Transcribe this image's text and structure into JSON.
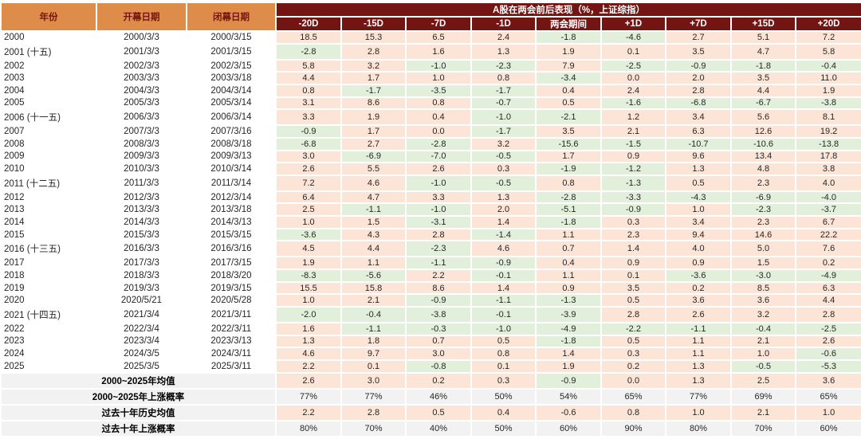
{
  "chart_data": {
    "type": "table",
    "title": "A股在两会前后表现（%，上证综指）",
    "columns": {
      "year": "年份",
      "open": "开幕日期",
      "close": "闭幕日期"
    },
    "period_columns": [
      "-20D",
      "-15D",
      "-7D",
      "-1D",
      "两会期间",
      "+1D",
      "+7D",
      "+15D",
      "+20D"
    ],
    "rows": [
      {
        "year": "2000",
        "open": "2000/3/3",
        "close": "2000/3/15",
        "values": [
          "18.5",
          "15.3",
          "6.5",
          "2.4",
          "-1.8",
          "-4.6",
          "2.7",
          "5.1",
          "7.2"
        ]
      },
      {
        "year": "2001 (十五)",
        "open": "2001/3/3",
        "close": "2001/3/15",
        "values": [
          "-2.8",
          "2.8",
          "1.6",
          "1.3",
          "1.9",
          "0.1",
          "3.5",
          "4.7",
          "5.8"
        ]
      },
      {
        "year": "2002",
        "open": "2002/3/3",
        "close": "2002/3/15",
        "values": [
          "5.8",
          "3.2",
          "-1.0",
          "-2.3",
          "7.9",
          "-2.5",
          "-0.9",
          "-1.8",
          "-0.4"
        ]
      },
      {
        "year": "2003",
        "open": "2003/3/3",
        "close": "2003/3/18",
        "values": [
          "4.4",
          "1.7",
          "1.0",
          "0.8",
          "-3.4",
          "0.0",
          "2.0",
          "3.5",
          "11.0"
        ]
      },
      {
        "year": "2004",
        "open": "2004/3/3",
        "close": "2004/3/14",
        "values": [
          "0.8",
          "-1.7",
          "-3.5",
          "-1.7",
          "0.4",
          "2.4",
          "2.8",
          "4.4",
          "1.9"
        ]
      },
      {
        "year": "2005",
        "open": "2005/3/3",
        "close": "2005/3/14",
        "values": [
          "3.1",
          "8.6",
          "0.8",
          "-0.7",
          "0.5",
          "-1.6",
          "-6.8",
          "-6.7",
          "-3.8"
        ]
      },
      {
        "year": "2006 (十一五)",
        "open": "2006/3/3",
        "close": "2006/3/14",
        "values": [
          "3.3",
          "1.9",
          "0.4",
          "-1.0",
          "-2.1",
          "1.2",
          "3.4",
          "5.6",
          "8.1"
        ]
      },
      {
        "year": "2007",
        "open": "2007/3/3",
        "close": "2007/3/16",
        "values": [
          "-0.9",
          "1.7",
          "0.0",
          "-1.7",
          "3.5",
          "2.1",
          "6.3",
          "12.6",
          "19.2"
        ]
      },
      {
        "year": "2008",
        "open": "2008/3/3",
        "close": "2008/3/18",
        "values": [
          "-6.8",
          "2.7",
          "-2.8",
          "3.2",
          "-15.6",
          "-1.5",
          "-10.7",
          "-10.6",
          "-13.8"
        ]
      },
      {
        "year": "2009",
        "open": "2009/3/3",
        "close": "2009/3/13",
        "values": [
          "3.0",
          "-6.9",
          "-7.0",
          "-0.5",
          "1.7",
          "0.9",
          "9.6",
          "13.4",
          "17.8"
        ]
      },
      {
        "year": "2010",
        "open": "2010/3/3",
        "close": "2010/3/14",
        "values": [
          "2.6",
          "5.5",
          "2.6",
          "0.3",
          "-1.9",
          "-1.2",
          "1.3",
          "4.8",
          "3.8"
        ]
      },
      {
        "year": "2011 (十二五)",
        "open": "2011/3/3",
        "close": "2011/3/14",
        "values": [
          "7.2",
          "4.6",
          "-1.0",
          "-0.5",
          "0.8",
          "-1.3",
          "0.5",
          "2.3",
          "4.0"
        ]
      },
      {
        "year": "2012",
        "open": "2012/3/3",
        "close": "2012/3/14",
        "values": [
          "6.4",
          "4.7",
          "3.3",
          "1.3",
          "-2.8",
          "-3.3",
          "-4.3",
          "-6.9",
          "-4.0"
        ]
      },
      {
        "year": "2013",
        "open": "2013/3/3",
        "close": "2013/3/18",
        "values": [
          "2.5",
          "-1.1",
          "-1.0",
          "2.0",
          "-5.1",
          "-0.9",
          "1.0",
          "-2.3",
          "-3.7"
        ]
      },
      {
        "year": "2014",
        "open": "2014/3/3",
        "close": "2014/3/13",
        "values": [
          "1.0",
          "1.5",
          "-3.1",
          "1.4",
          "-1.8",
          "0.3",
          "3.4",
          "2.3",
          "6.7"
        ]
      },
      {
        "year": "2015",
        "open": "2015/3/3",
        "close": "2015/3/15",
        "values": [
          "-3.6",
          "4.3",
          "2.8",
          "-1.4",
          "1.1",
          "2.3",
          "9.4",
          "14.6",
          "22.2"
        ]
      },
      {
        "year": "2016 (十三五)",
        "open": "2016/3/3",
        "close": "2016/3/16",
        "values": [
          "4.5",
          "4.4",
          "-2.3",
          "4.6",
          "0.7",
          "1.4",
          "4.0",
          "5.0",
          "7.6"
        ]
      },
      {
        "year": "2017",
        "open": "2017/3/3",
        "close": "2017/3/15",
        "values": [
          "1.9",
          "1.1",
          "-1.1",
          "-0.9",
          "0.4",
          "0.9",
          "0.9",
          "1.5",
          "0.2"
        ]
      },
      {
        "year": "2018",
        "open": "2018/3/3",
        "close": "2018/3/20",
        "values": [
          "-8.3",
          "-5.6",
          "2.2",
          "-0.1",
          "1.1",
          "0.1",
          "-3.6",
          "-3.0",
          "-4.9"
        ]
      },
      {
        "year": "2019",
        "open": "2019/3/3",
        "close": "2019/3/15",
        "values": [
          "15.5",
          "15.8",
          "8.6",
          "1.4",
          "0.9",
          "3.5",
          "0.2",
          "8.5",
          "6.3"
        ]
      },
      {
        "year": "2020",
        "open": "2020/5/21",
        "close": "2020/5/28",
        "values": [
          "1.0",
          "2.1",
          "-0.9",
          "-1.1",
          "-1.3",
          "0.5",
          "3.6",
          "3.6",
          "4.4"
        ]
      },
      {
        "year": "2021 (十四五)",
        "open": "2021/3/4",
        "close": "2021/3/11",
        "values": [
          "-2.0",
          "-0.4",
          "-3.8",
          "-0.1",
          "-3.9",
          "2.8",
          "2.6",
          "3.2",
          "2.8"
        ]
      },
      {
        "year": "2022",
        "open": "2022/3/4",
        "close": "2022/3/11",
        "values": [
          "1.6",
          "-1.1",
          "-0.3",
          "-1.0",
          "-4.9",
          "-2.2",
          "-1.1",
          "-0.4",
          "-2.5"
        ]
      },
      {
        "year": "2023",
        "open": "2023/3/4",
        "close": "2023/3/13",
        "values": [
          "1.3",
          "1.8",
          "0.7",
          "0.5",
          "-1.8",
          "0.5",
          "1.1",
          "2.1",
          "2.6"
        ]
      },
      {
        "year": "2024",
        "open": "2024/3/5",
        "close": "2024/3/11",
        "values": [
          "4.6",
          "9.7",
          "3.0",
          "0.8",
          "1.4",
          "0.3",
          "1.1",
          "1.0",
          "-0.6"
        ]
      },
      {
        "year": "2025",
        "open": "2025/3/5",
        "close": "2025/3/11",
        "values": [
          "2.2",
          "0.1",
          "-0.8",
          "0.1",
          "1.9",
          "0.2",
          "1.3",
          "-0.5",
          "-5.3"
        ]
      }
    ],
    "summary_rows": [
      {
        "label": "2000~2025年均值",
        "style": "sign",
        "values": [
          "2.6",
          "3.0",
          "0.2",
          "0.3",
          "-0.9",
          "0.0",
          "1.3",
          "2.5",
          "3.6"
        ]
      },
      {
        "label": "2000~2025年上涨概率",
        "style": "gray",
        "values": [
          "77%",
          "77%",
          "46%",
          "50%",
          "54%",
          "65%",
          "77%",
          "69%",
          "65%"
        ]
      },
      {
        "label": "过去十年历史均值",
        "style": "pink",
        "values": [
          "2.2",
          "2.8",
          "0.5",
          "0.4",
          "-0.6",
          "0.8",
          "1.0",
          "2.1",
          "1.0"
        ]
      },
      {
        "label": "过去十年上涨概率",
        "style": "gray",
        "values": [
          "80%",
          "70%",
          "40%",
          "50%",
          "60%",
          "90%",
          "80%",
          "70%",
          "60%"
        ]
      }
    ]
  },
  "colors": {
    "header_orange_bg": "#DE8C4A",
    "header_red_bg": "#731512",
    "header_red_text": "#731512",
    "positive_cell_bg": "#FCE4D6",
    "negative_cell_bg": "#E2EFDA",
    "neutral_cell_bg": "#F2F2F2",
    "body_text": "#262626"
  }
}
